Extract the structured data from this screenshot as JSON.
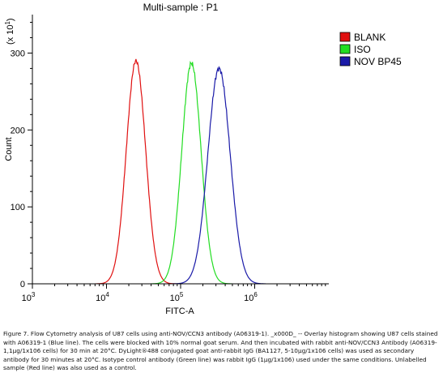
{
  "chart_data": {
    "type": "area",
    "title": "Multi-sample : P1",
    "xlabel": "FITC-A",
    "ylabel": "Count",
    "y_multiplier_label": "(x 10",
    "y_multiplier_exp": "1",
    "y_multiplier_close": ")",
    "x_scale": "log",
    "xlim": [
      1000,
      10000000
    ],
    "ylim": [
      0,
      350
    ],
    "x_ticks": [
      {
        "value": 1000,
        "base": "10",
        "exp": "3"
      },
      {
        "value": 10000,
        "base": "10",
        "exp": "4"
      },
      {
        "value": 100000,
        "base": "10",
        "exp": "5"
      },
      {
        "value": 1000000,
        "base": "10",
        "exp": "6"
      }
    ],
    "y_ticks": [
      {
        "value": 0,
        "label": "0"
      },
      {
        "value": 100,
        "label": "100"
      },
      {
        "value": 200,
        "label": "200"
      },
      {
        "value": 300,
        "label": "300"
      }
    ],
    "legend_position": "top-right",
    "grid": false,
    "series": [
      {
        "name": "BLANK",
        "color": "#e01010",
        "peak_x": 25000,
        "peak_y": 290,
        "spread_decades": 0.13
      },
      {
        "name": "ISO",
        "color": "#22dd22",
        "peak_x": 140000,
        "peak_y": 287,
        "spread_decades": 0.13
      },
      {
        "name": "NOV BP45",
        "color": "#1a1aa8",
        "peak_x": 330000,
        "peak_y": 280,
        "spread_decades": 0.15
      }
    ]
  },
  "caption": "Figure 7. Flow Cytometry analysis of U87 cells using anti-NOV/CCN3 antibody (A06319-1). _x000D_ -- Overlay histogram showing U87 cells stained with A06319-1 (Blue line). The cells were blocked with 10% normal goat serum. And then incubated with rabbit anti-NOV/CCN3 Antibody (A06319-1,1μg/1x106 cells) for 30 min at 20°C. DyLight®488 conjugated goat anti-rabbit IgG (BA1127, 5-10μg/1x106 cells) was used as secondary antibody for 30 minutes at 20°C. Isotype control antibody (Green line) was rabbit IgG (1μg/1x106) used under the same conditions. Unlabelled sample (Red line) was also used as a control."
}
